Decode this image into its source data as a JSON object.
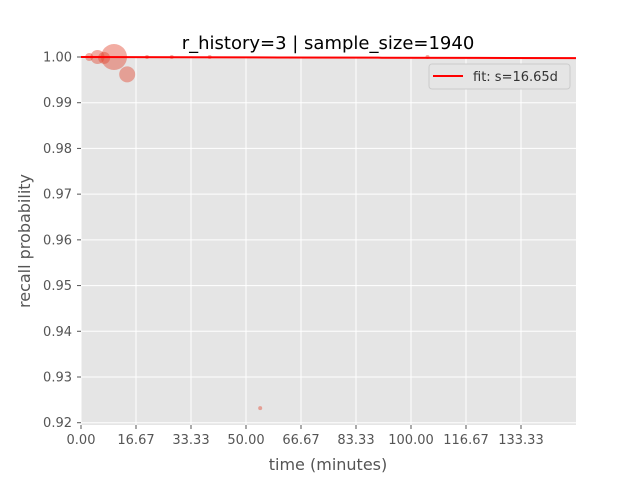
{
  "chart_data": {
    "type": "scatter",
    "title": "r_history=3 | sample_size=1940",
    "xlabel": "time (minutes)",
    "ylabel": "recall probability",
    "xlim": [
      0,
      150
    ],
    "ylim": [
      0.9195,
      1.0
    ],
    "xticks": [
      0,
      16.67,
      33.33,
      50,
      66.67,
      83.33,
      100,
      116.67,
      133.33
    ],
    "xtick_labels": [
      "0.00",
      "16.67",
      "33.33",
      "50.00",
      "66.67",
      "83.33",
      "100.00",
      "116.67",
      "133.33"
    ],
    "yticks": [
      0.92,
      0.93,
      0.94,
      0.95,
      0.96,
      0.97,
      0.98,
      0.99,
      1.0
    ],
    "ytick_labels": [
      "0.92",
      "0.93",
      "0.94",
      "0.95",
      "0.96",
      "0.97",
      "0.98",
      "0.99",
      "1.00"
    ],
    "grid": true,
    "scatter_points": [
      {
        "x": 2.5,
        "y": 1.0,
        "size": 4
      },
      {
        "x": 5.0,
        "y": 1.0,
        "size": 7
      },
      {
        "x": 7.0,
        "y": 0.9998,
        "size": 6
      },
      {
        "x": 10.0,
        "y": 1.0,
        "size": 13
      },
      {
        "x": 14.0,
        "y": 0.9962,
        "size": 8
      },
      {
        "x": 20.0,
        "y": 1.0,
        "size": 2
      },
      {
        "x": 27.5,
        "y": 1.0,
        "size": 2
      },
      {
        "x": 39.0,
        "y": 1.0,
        "size": 2
      },
      {
        "x": 54.3,
        "y": 0.9232,
        "size": 2
      },
      {
        "x": 105.0,
        "y": 1.0,
        "size": 2
      }
    ],
    "fit_line": {
      "label": "fit: s=16.65d",
      "x": [
        0,
        30,
        60,
        90,
        120,
        150
      ],
      "y": [
        1.0,
        0.99995,
        0.9999,
        0.99985,
        0.9998,
        0.99975
      ]
    },
    "legend_position": "top-right",
    "colors": {
      "background": "#e5e5e5",
      "grid": "#ffffff",
      "scatter": "#e24a33",
      "fit": "#ff0000"
    }
  }
}
